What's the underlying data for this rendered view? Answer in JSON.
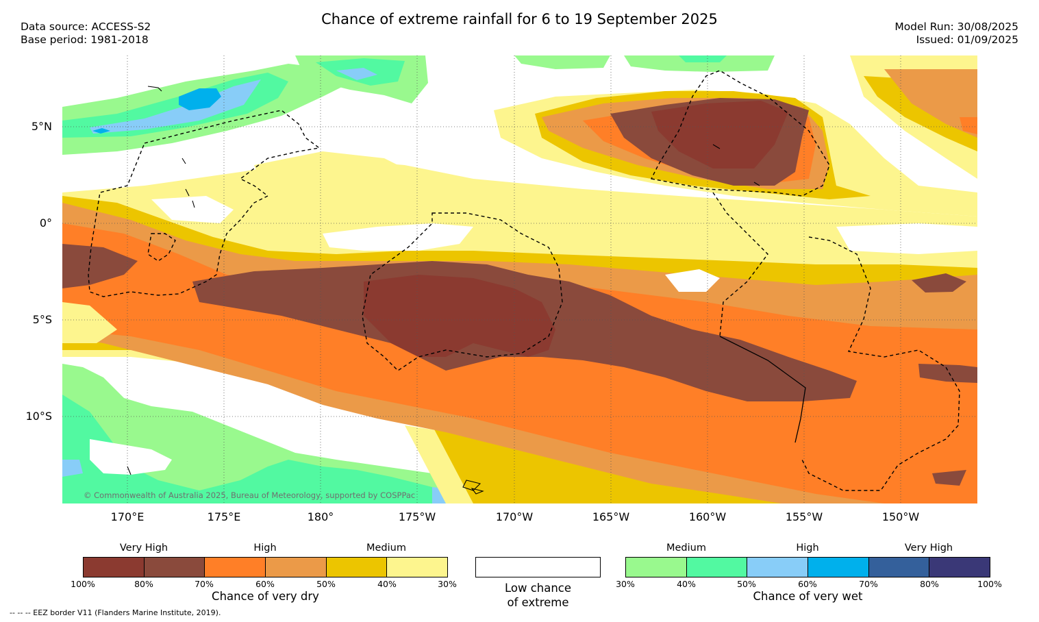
{
  "header": {
    "title": "Chance of extreme rainfall for 6 to 19 September 2025",
    "data_source": "Data source: ACCESS-S2",
    "base_period": "Base period: 1981-2018",
    "model_run": "Model Run: 30/08/2025",
    "issued": "Issued: 01/09/2025"
  },
  "map": {
    "latitude_labels": [
      "5°N",
      "0°",
      "5°S",
      "10°S"
    ],
    "longitude_labels": [
      "170°E",
      "175°E",
      "180°",
      "175°W",
      "170°W",
      "165°W",
      "160°W",
      "155°W",
      "150°W"
    ],
    "copyright": "© Commonwealth of Australia 2025, Bureau of Meteorology, supported by COSPPac",
    "border_line_color": "#000000"
  },
  "legend": {
    "dry": {
      "title": "Chance of very dry",
      "categories": [
        "Very High",
        "High",
        "Medium"
      ],
      "ticks": [
        "100%",
        "80%",
        "70%",
        "60%",
        "50%",
        "40%",
        "30%"
      ],
      "colors": [
        "#8b3a30",
        "#8a4a3c",
        "#ff7f27",
        "#eb9a48",
        "#ecc500",
        "#fdf58e"
      ]
    },
    "neutral": {
      "title_line1": "Low chance",
      "title_line2": "of extreme",
      "color": "#ffffff"
    },
    "wet": {
      "title": "Chance of very wet",
      "categories": [
        "Medium",
        "High",
        "Very High"
      ],
      "ticks": [
        "30%",
        "40%",
        "50%",
        "60%",
        "70%",
        "80%",
        "100%"
      ],
      "colors": [
        "#99f98e",
        "#52f9a1",
        "#88cdf8",
        "#00b0ec",
        "#34609b",
        "#3a3877"
      ]
    }
  },
  "footnote": "--  --  -- EEZ border V11 (Flanders Marine Institute, 2019)."
}
